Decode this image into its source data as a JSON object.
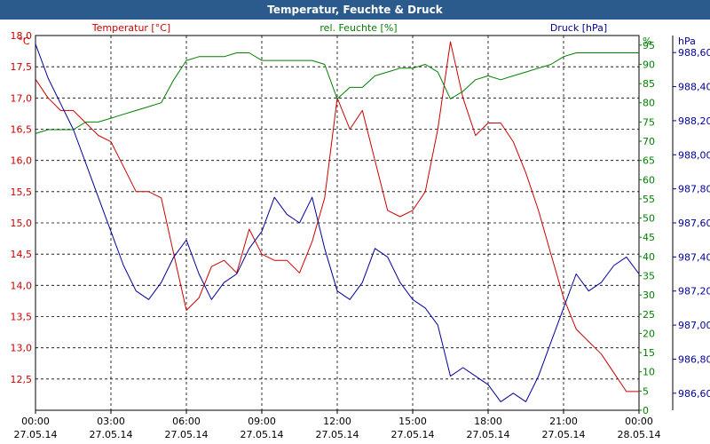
{
  "window": {
    "title": "Temperatur, Feuchte & Druck"
  },
  "chart_data": {
    "type": "line",
    "title": "Temperatur, Feuchte & Druck",
    "grid": true,
    "x_ticks": [
      {
        "time": "00:00",
        "date": "27.05.14"
      },
      {
        "time": "03:00",
        "date": "27.05.14"
      },
      {
        "time": "06:00",
        "date": "27.05.14"
      },
      {
        "time": "09:00",
        "date": "27.05.14"
      },
      {
        "time": "12:00",
        "date": "27.05.14"
      },
      {
        "time": "15:00",
        "date": "27.05.14"
      },
      {
        "time": "18:00",
        "date": "27.05.14"
      },
      {
        "time": "21:00",
        "date": "27.05.14"
      },
      {
        "time": "00:00",
        "date": "28.05.14"
      }
    ],
    "x_range_hours": [
      0,
      24
    ],
    "axes": {
      "temperature": {
        "label": "Temperatur [°C]",
        "unit": "°C",
        "color": "#cc0000",
        "range": [
          12.0,
          18.0
        ],
        "ticks": [
          "18,0",
          "17,5",
          "17,0",
          "16,5",
          "16,0",
          "15,5",
          "15,0",
          "14,5",
          "14,0",
          "13,5",
          "13,0",
          "12,5"
        ]
      },
      "humidity": {
        "label": "rel. Feuchte [%]",
        "unit": "%",
        "color": "#008000",
        "range": [
          0,
          97.5
        ],
        "ticks": [
          "95",
          "90",
          "85",
          "80",
          "75",
          "70",
          "65",
          "60",
          "55",
          "50",
          "45",
          "40",
          "35",
          "30",
          "25",
          "20",
          "15",
          "10",
          "5",
          "0"
        ]
      },
      "pressure": {
        "label": "Druck [hPa]",
        "unit": "hPa",
        "color": "#000099",
        "range": [
          986.5,
          988.7
        ],
        "ticks": [
          "988,60",
          "988,40",
          "988,20",
          "988,00",
          "987,80",
          "987,60",
          "987,40",
          "987,20",
          "987,00",
          "986,80",
          "986,60"
        ]
      }
    },
    "series": [
      {
        "name": "Temperatur [°C]",
        "axis": "temperature",
        "color": "#cc0000",
        "x": [
          0,
          0.5,
          1,
          1.5,
          2,
          2.5,
          3,
          3.5,
          4,
          4.5,
          5,
          5.5,
          6,
          6.5,
          7,
          7.5,
          8,
          8.5,
          9,
          9.5,
          10,
          10.5,
          11,
          11.5,
          12,
          12.5,
          13,
          13.5,
          14,
          14.5,
          15,
          15.5,
          16,
          16.5,
          17,
          17.5,
          18,
          18.5,
          19,
          19.5,
          20,
          20.5,
          21,
          21.5,
          22,
          22.5,
          23,
          23.5,
          24
        ],
        "y": [
          17.3,
          17.0,
          16.8,
          16.8,
          16.6,
          16.4,
          16.3,
          15.9,
          15.5,
          15.5,
          15.4,
          14.5,
          13.6,
          13.8,
          14.3,
          14.4,
          14.2,
          14.9,
          14.5,
          14.4,
          14.4,
          14.2,
          14.7,
          15.4,
          17.0,
          16.5,
          16.8,
          16.0,
          15.2,
          15.1,
          15.2,
          15.5,
          16.5,
          17.9,
          17.0,
          16.4,
          16.6,
          16.6,
          16.3,
          15.8,
          15.2,
          14.5,
          13.8,
          13.3,
          13.1,
          12.9,
          12.6,
          12.3,
          12.3
        ]
      },
      {
        "name": "rel. Feuchte [%]",
        "axis": "humidity",
        "color": "#008000",
        "x": [
          0,
          0.5,
          1,
          1.5,
          2,
          2.5,
          3,
          3.5,
          4,
          4.5,
          5,
          5.5,
          6,
          6.5,
          7,
          7.5,
          8,
          8.5,
          9,
          9.5,
          10,
          10.5,
          11,
          11.5,
          12,
          12.5,
          13,
          13.5,
          14,
          14.5,
          15,
          15.5,
          16,
          16.5,
          17,
          17.5,
          18,
          18.5,
          19,
          19.5,
          20,
          20.5,
          21,
          21.5,
          22,
          22.5,
          23,
          23.5,
          24
        ],
        "y": [
          72,
          73,
          73,
          73,
          75,
          75,
          76,
          77,
          78,
          79,
          80,
          86,
          91,
          92,
          92,
          92,
          93,
          93,
          91,
          91,
          91,
          91,
          91,
          90,
          81,
          84,
          84,
          87,
          88,
          89,
          89,
          90,
          88,
          81,
          83,
          86,
          87,
          86,
          87,
          88,
          89,
          90,
          92,
          93,
          93,
          93,
          93,
          93,
          93
        ]
      },
      {
        "name": "Druck [hPa]",
        "axis": "pressure",
        "color": "#000099",
        "x": [
          0,
          0.5,
          1,
          1.5,
          2,
          2.5,
          3,
          3.5,
          4,
          4.5,
          5,
          5.5,
          6,
          6.5,
          7,
          7.5,
          8,
          8.5,
          9,
          9.5,
          10,
          10.5,
          11,
          11.5,
          12,
          12.5,
          13,
          13.5,
          14,
          14.5,
          15,
          15.5,
          16,
          16.5,
          17,
          17.5,
          18,
          18.5,
          19,
          19.5,
          20,
          20.5,
          21,
          21.5,
          22,
          22.5,
          23,
          23.5,
          24
        ],
        "y": [
          988.65,
          988.45,
          988.3,
          988.15,
          987.95,
          987.75,
          987.55,
          987.35,
          987.2,
          987.15,
          987.25,
          987.4,
          987.5,
          987.3,
          987.15,
          987.25,
          987.3,
          987.45,
          987.55,
          987.75,
          987.65,
          987.6,
          987.75,
          987.45,
          987.2,
          987.15,
          987.25,
          987.45,
          987.4,
          987.25,
          987.15,
          987.1,
          987.0,
          986.7,
          986.75,
          986.7,
          986.65,
          986.55,
          986.6,
          986.55,
          986.7,
          986.9,
          987.1,
          987.3,
          987.2,
          987.25,
          987.35,
          987.4,
          987.3
        ]
      }
    ]
  }
}
